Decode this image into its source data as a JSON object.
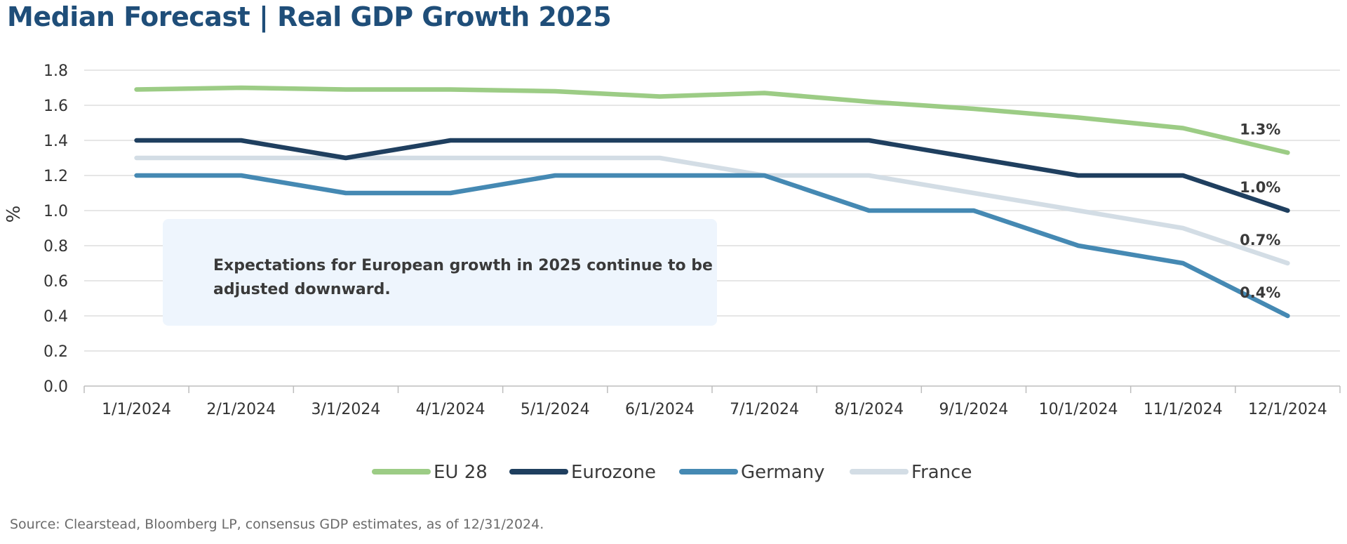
{
  "chart_data": {
    "type": "line",
    "title": "Median Forecast | Real GDP Growth 2025",
    "ylabel": "%",
    "xlabel": "",
    "ylim": [
      0,
      1.8
    ],
    "yticks": [
      "0.0",
      "0.2",
      "0.4",
      "0.6",
      "0.8",
      "1.0",
      "1.2",
      "1.4",
      "1.6",
      "1.8"
    ],
    "grid": "horizontal",
    "legend_position": "bottom",
    "categories": [
      "1/1/2024",
      "2/1/2024",
      "3/1/2024",
      "4/1/2024",
      "5/1/2024",
      "6/1/2024",
      "7/1/2024",
      "8/1/2024",
      "9/1/2024",
      "10/1/2024",
      "11/1/2024",
      "12/1/2024"
    ],
    "series": [
      {
        "name": "EU 28",
        "color": "#9ccc85",
        "values": [
          1.69,
          1.7,
          1.69,
          1.69,
          1.68,
          1.65,
          1.67,
          1.62,
          1.58,
          1.53,
          1.47,
          1.33
        ],
        "end_label": "1.3%"
      },
      {
        "name": "Eurozone",
        "color": "#1f3f5f",
        "values": [
          1.4,
          1.4,
          1.3,
          1.4,
          1.4,
          1.4,
          1.4,
          1.4,
          1.3,
          1.2,
          1.2,
          1.0
        ],
        "end_label": "1.0%"
      },
      {
        "name": "Germany",
        "color": "#4589b3",
        "values": [
          1.2,
          1.2,
          1.1,
          1.1,
          1.2,
          1.2,
          1.2,
          1.0,
          1.0,
          0.8,
          0.7,
          0.4
        ],
        "end_label": "0.4%"
      },
      {
        "name": "France",
        "color": "#d3dde5",
        "values": [
          1.3,
          1.3,
          1.3,
          1.3,
          1.3,
          1.3,
          1.2,
          1.2,
          1.1,
          1.0,
          0.9,
          0.7
        ],
        "end_label": "0.7%"
      }
    ],
    "annotation": {
      "lines": [
        "Expectations for European growth in 2025 continue to be",
        "adjusted downward."
      ],
      "background": "#eef5fd"
    }
  },
  "footer": {
    "source": "Source: Clearstead, Bloomberg LP, consensus GDP estimates, as of 12/31/2024."
  }
}
